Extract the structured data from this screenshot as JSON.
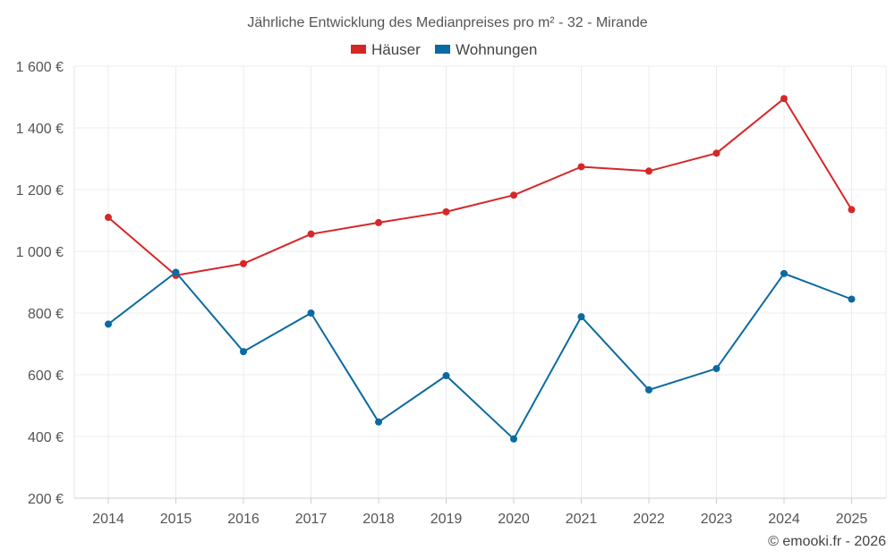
{
  "chart_data": {
    "type": "line",
    "title": "Jährliche Entwicklung des Medianpreises pro m² - 32 - Mirande",
    "xlabel": "",
    "ylabel": "",
    "categories": [
      "2014",
      "2015",
      "2016",
      "2017",
      "2018",
      "2019",
      "2020",
      "2021",
      "2022",
      "2023",
      "2024",
      "2025"
    ],
    "ylim": [
      200,
      1600
    ],
    "yticks": [
      200,
      400,
      600,
      800,
      1000,
      1200,
      1400,
      1600
    ],
    "ytick_labels": [
      "200 €",
      "400 €",
      "600 €",
      "800 €",
      "1 000 €",
      "1 200 €",
      "1 400 €",
      "1 600 €"
    ],
    "grid": true,
    "legend_position": "top-center",
    "series": [
      {
        "name": "Häuser",
        "color": "#d62728",
        "values": [
          1110,
          922,
          960,
          1056,
          1093,
          1128,
          1182,
          1274,
          1260,
          1318,
          1495,
          1135
        ]
      },
      {
        "name": "Wohnungen",
        "color": "#0b6aa2",
        "values": [
          764,
          932,
          675,
          800,
          447,
          597,
          392,
          788,
          551,
          620,
          928,
          845
        ]
      }
    ],
    "credit": "© emooki.fr - 2026"
  }
}
